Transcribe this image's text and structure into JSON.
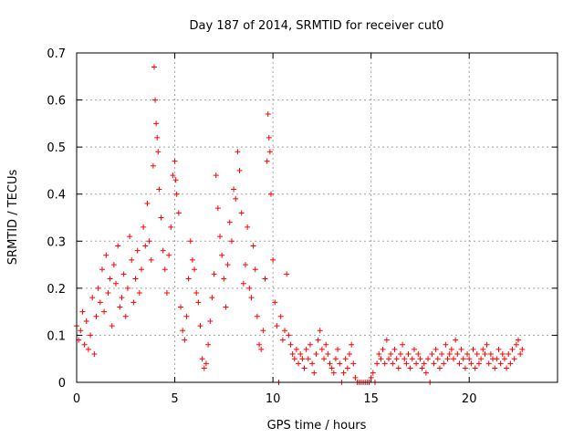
{
  "chart_data": {
    "type": "scatter",
    "title": "Day 187 of 2014, SRMTID for receiver cut0",
    "xlabel": "GPS time / hours",
    "ylabel": "SRMTID / TECUs",
    "xlim": [
      0,
      24.5
    ],
    "ylim": [
      0,
      0.7
    ],
    "x_ticks": [
      "0",
      "5",
      "10",
      "15",
      "20"
    ],
    "x_tick_values": [
      0,
      5,
      10,
      15,
      20
    ],
    "y_ticks": [
      "0",
      "0.1",
      "0.2",
      "0.3",
      "0.4",
      "0.5",
      "0.6",
      "0.7"
    ],
    "y_tick_values": [
      0,
      0.1,
      0.2,
      0.3,
      0.4,
      0.5,
      0.6,
      0.7
    ],
    "grid": true,
    "marker": "+",
    "marker_color": "#ff0000",
    "series": [
      {
        "name": "SRMTID",
        "points": [
          [
            0.0,
            0.12
          ],
          [
            0.1,
            0.09
          ],
          [
            0.2,
            0.11
          ],
          [
            0.3,
            0.15
          ],
          [
            0.4,
            0.08
          ],
          [
            0.5,
            0.13
          ],
          [
            0.6,
            0.07
          ],
          [
            0.7,
            0.1
          ],
          [
            0.8,
            0.18
          ],
          [
            0.9,
            0.06
          ],
          [
            1.0,
            0.14
          ],
          [
            1.1,
            0.2
          ],
          [
            1.2,
            0.17
          ],
          [
            1.3,
            0.24
          ],
          [
            1.4,
            0.15
          ],
          [
            1.5,
            0.27
          ],
          [
            1.6,
            0.19
          ],
          [
            1.7,
            0.22
          ],
          [
            1.8,
            0.12
          ],
          [
            1.9,
            0.25
          ],
          [
            2.0,
            0.21
          ],
          [
            2.1,
            0.29
          ],
          [
            2.2,
            0.16
          ],
          [
            2.3,
            0.18
          ],
          [
            2.4,
            0.23
          ],
          [
            2.5,
            0.14
          ],
          [
            2.6,
            0.2
          ],
          [
            2.7,
            0.31
          ],
          [
            2.8,
            0.26
          ],
          [
            2.9,
            0.17
          ],
          [
            3.0,
            0.22
          ],
          [
            3.1,
            0.28
          ],
          [
            3.2,
            0.19
          ],
          [
            3.3,
            0.24
          ],
          [
            3.4,
            0.33
          ],
          [
            3.5,
            0.29
          ],
          [
            3.6,
            0.38
          ],
          [
            3.7,
            0.3
          ],
          [
            3.8,
            0.26
          ],
          [
            3.9,
            0.46
          ],
          [
            3.95,
            0.67
          ],
          [
            4.0,
            0.6
          ],
          [
            4.05,
            0.55
          ],
          [
            4.1,
            0.52
          ],
          [
            4.15,
            0.49
          ],
          [
            4.2,
            0.41
          ],
          [
            4.3,
            0.35
          ],
          [
            4.4,
            0.28
          ],
          [
            4.5,
            0.24
          ],
          [
            4.6,
            0.19
          ],
          [
            4.7,
            0.27
          ],
          [
            4.8,
            0.33
          ],
          [
            4.9,
            0.44
          ],
          [
            5.0,
            0.47
          ],
          [
            5.05,
            0.43
          ],
          [
            5.1,
            0.4
          ],
          [
            5.2,
            0.36
          ],
          [
            5.3,
            0.16
          ],
          [
            5.4,
            0.11
          ],
          [
            5.5,
            0.09
          ],
          [
            5.6,
            0.14
          ],
          [
            5.7,
            0.22
          ],
          [
            5.8,
            0.3
          ],
          [
            5.9,
            0.26
          ],
          [
            6.0,
            0.24
          ],
          [
            6.1,
            0.19
          ],
          [
            6.2,
            0.17
          ],
          [
            6.3,
            0.12
          ],
          [
            6.4,
            0.05
          ],
          [
            6.5,
            0.03
          ],
          [
            6.6,
            0.04
          ],
          [
            6.7,
            0.08
          ],
          [
            6.8,
            0.13
          ],
          [
            6.9,
            0.18
          ],
          [
            7.0,
            0.23
          ],
          [
            7.1,
            0.44
          ],
          [
            7.2,
            0.37
          ],
          [
            7.3,
            0.31
          ],
          [
            7.4,
            0.27
          ],
          [
            7.5,
            0.22
          ],
          [
            7.6,
            0.16
          ],
          [
            7.7,
            0.25
          ],
          [
            7.8,
            0.34
          ],
          [
            7.9,
            0.3
          ],
          [
            8.0,
            0.41
          ],
          [
            8.1,
            0.39
          ],
          [
            8.2,
            0.49
          ],
          [
            8.3,
            0.45
          ],
          [
            8.4,
            0.36
          ],
          [
            8.5,
            0.21
          ],
          [
            8.6,
            0.25
          ],
          [
            8.7,
            0.33
          ],
          [
            8.8,
            0.2
          ],
          [
            8.9,
            0.18
          ],
          [
            9.0,
            0.29
          ],
          [
            9.1,
            0.24
          ],
          [
            9.2,
            0.14
          ],
          [
            9.3,
            0.08
          ],
          [
            9.4,
            0.07
          ],
          [
            9.5,
            0.11
          ],
          [
            9.6,
            0.22
          ],
          [
            9.7,
            0.47
          ],
          [
            9.75,
            0.57
          ],
          [
            9.8,
            0.52
          ],
          [
            9.85,
            0.49
          ],
          [
            9.9,
            0.4
          ],
          [
            10.0,
            0.26
          ],
          [
            10.1,
            0.17
          ],
          [
            10.2,
            0.12
          ],
          [
            10.3,
            0.0
          ],
          [
            10.4,
            0.14
          ],
          [
            10.5,
            0.09
          ],
          [
            10.6,
            0.11
          ],
          [
            10.7,
            0.23
          ],
          [
            10.8,
            0.1
          ],
          [
            10.9,
            0.08
          ],
          [
            11.0,
            0.06
          ],
          [
            11.1,
            0.05
          ],
          [
            11.2,
            0.07
          ],
          [
            11.3,
            0.04
          ],
          [
            11.4,
            0.06
          ],
          [
            11.5,
            0.05
          ],
          [
            11.6,
            0.03
          ],
          [
            11.7,
            0.07
          ],
          [
            11.8,
            0.05
          ],
          [
            11.9,
            0.08
          ],
          [
            12.0,
            0.04
          ],
          [
            12.1,
            0.02
          ],
          [
            12.2,
            0.06
          ],
          [
            12.3,
            0.09
          ],
          [
            12.4,
            0.11
          ],
          [
            12.5,
            0.07
          ],
          [
            12.6,
            0.05
          ],
          [
            12.7,
            0.08
          ],
          [
            12.8,
            0.06
          ],
          [
            12.9,
            0.04
          ],
          [
            13.0,
            0.03
          ],
          [
            13.1,
            0.02
          ],
          [
            13.2,
            0.05
          ],
          [
            13.3,
            0.07
          ],
          [
            13.4,
            0.04
          ],
          [
            13.5,
            0.0
          ],
          [
            13.6,
            0.02
          ],
          [
            13.7,
            0.05
          ],
          [
            13.8,
            0.03
          ],
          [
            13.9,
            0.06
          ],
          [
            14.0,
            0.08
          ],
          [
            14.1,
            0.04
          ],
          [
            14.2,
            0.01
          ],
          [
            14.3,
            0.0
          ],
          [
            14.4,
            0.0
          ],
          [
            14.5,
            0.0
          ],
          [
            14.6,
            0.0
          ],
          [
            14.7,
            0.0
          ],
          [
            14.8,
            0.0
          ],
          [
            14.9,
            0.0
          ],
          [
            15.0,
            0.01
          ],
          [
            15.1,
            0.02
          ],
          [
            15.2,
            0.0
          ],
          [
            15.3,
            0.04
          ],
          [
            15.4,
            0.06
          ],
          [
            15.5,
            0.05
          ],
          [
            15.6,
            0.07
          ],
          [
            15.7,
            0.04
          ],
          [
            15.8,
            0.09
          ],
          [
            15.9,
            0.05
          ],
          [
            16.0,
            0.06
          ],
          [
            16.1,
            0.04
          ],
          [
            16.2,
            0.07
          ],
          [
            16.3,
            0.05
          ],
          [
            16.4,
            0.03
          ],
          [
            16.5,
            0.06
          ],
          [
            16.6,
            0.08
          ],
          [
            16.7,
            0.05
          ],
          [
            16.8,
            0.04
          ],
          [
            16.9,
            0.06
          ],
          [
            17.0,
            0.03
          ],
          [
            17.1,
            0.05
          ],
          [
            17.2,
            0.07
          ],
          [
            17.3,
            0.04
          ],
          [
            17.4,
            0.06
          ],
          [
            17.5,
            0.05
          ],
          [
            17.6,
            0.03
          ],
          [
            17.7,
            0.04
          ],
          [
            17.8,
            0.02
          ],
          [
            17.9,
            0.05
          ],
          [
            18.0,
            0.0
          ],
          [
            18.1,
            0.06
          ],
          [
            18.2,
            0.04
          ],
          [
            18.3,
            0.07
          ],
          [
            18.4,
            0.05
          ],
          [
            18.5,
            0.03
          ],
          [
            18.6,
            0.06
          ],
          [
            18.7,
            0.04
          ],
          [
            18.8,
            0.08
          ],
          [
            18.9,
            0.05
          ],
          [
            19.0,
            0.06
          ],
          [
            19.1,
            0.07
          ],
          [
            19.2,
            0.05
          ],
          [
            19.3,
            0.09
          ],
          [
            19.4,
            0.06
          ],
          [
            19.5,
            0.04
          ],
          [
            19.6,
            0.07
          ],
          [
            19.7,
            0.05
          ],
          [
            19.8,
            0.03
          ],
          [
            19.9,
            0.06
          ],
          [
            20.0,
            0.05
          ],
          [
            20.1,
            0.04
          ],
          [
            20.2,
            0.07
          ],
          [
            20.3,
            0.03
          ],
          [
            20.4,
            0.06
          ],
          [
            20.5,
            0.04
          ],
          [
            20.6,
            0.05
          ],
          [
            20.7,
            0.07
          ],
          [
            20.8,
            0.06
          ],
          [
            20.9,
            0.08
          ],
          [
            21.0,
            0.04
          ],
          [
            21.1,
            0.06
          ],
          [
            21.2,
            0.05
          ],
          [
            21.3,
            0.03
          ],
          [
            21.4,
            0.05
          ],
          [
            21.5,
            0.07
          ],
          [
            21.6,
            0.04
          ],
          [
            21.7,
            0.06
          ],
          [
            21.8,
            0.05
          ],
          [
            21.9,
            0.03
          ],
          [
            22.0,
            0.06
          ],
          [
            22.1,
            0.04
          ],
          [
            22.2,
            0.07
          ],
          [
            22.3,
            0.05
          ],
          [
            22.4,
            0.08
          ],
          [
            22.5,
            0.09
          ],
          [
            22.6,
            0.06
          ],
          [
            22.7,
            0.07
          ]
        ]
      }
    ]
  }
}
